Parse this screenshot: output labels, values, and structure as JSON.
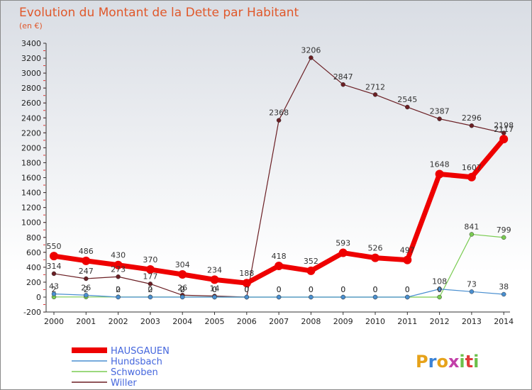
{
  "chart_data": {
    "type": "line",
    "title": "Evolution du Montant de la Dette par Habitant",
    "subtitle": "(en €)",
    "xlabel": "",
    "ylabel": "",
    "ylim": [
      -200,
      3400
    ],
    "y_ticks": [
      -200,
      0,
      200,
      400,
      600,
      800,
      1000,
      1200,
      1400,
      1600,
      1800,
      2000,
      2200,
      2400,
      2600,
      2800,
      3000,
      3200,
      3400
    ],
    "categories": [
      "2000",
      "2001",
      "2002",
      "2003",
      "2004",
      "2005",
      "2006",
      "2007",
      "2008",
      "2009",
      "2010",
      "2011",
      "2012",
      "2013",
      "2014"
    ],
    "grid": false,
    "legend_position": "bottom-left",
    "series": [
      {
        "name": "Willer",
        "color": "#6b1f24",
        "values": [
          314,
          247,
          273,
          177,
          26,
          14,
          0,
          2368,
          3206,
          2847,
          2712,
          2545,
          2387,
          2296,
          2198
        ],
        "labels": [
          "314",
          "247",
          "273",
          "177",
          "26",
          "14",
          "0",
          "2368",
          "3206",
          "2847",
          "2712",
          "2545",
          "2387",
          "2296",
          "2198"
        ]
      },
      {
        "name": "Schwoben",
        "color": "#7acc52",
        "values": [
          2,
          2,
          2,
          2,
          2,
          0,
          0,
          0,
          0,
          0,
          0,
          0,
          0,
          841,
          799
        ],
        "labels": [
          "2",
          "2",
          "2",
          "2",
          "2",
          "0",
          "0",
          "0",
          "0",
          "0",
          "0",
          "0",
          "0",
          "841",
          "799"
        ]
      },
      {
        "name": "Hundsbach",
        "color": "#4a8fd0",
        "values": [
          43,
          26,
          0,
          0,
          0,
          0,
          0,
          0,
          0,
          0,
          0,
          0,
          108,
          73,
          38
        ],
        "labels": [
          "43",
          "26",
          "0",
          "0",
          "0",
          "0",
          "0",
          "0",
          "0",
          "0",
          "0",
          "0",
          "108",
          "73",
          "38"
        ]
      },
      {
        "name": "HAUSGAUEN",
        "color": "#ee0000",
        "values": [
          550,
          486,
          430,
          370,
          304,
          234,
          188,
          418,
          352,
          593,
          526,
          497,
          1648,
          1607,
          2117
        ],
        "labels": [
          "550",
          "486",
          "430",
          "370",
          "304",
          "234",
          "188",
          "418",
          "352",
          "593",
          "526",
          "497",
          "1648",
          "1607",
          "2117"
        ]
      }
    ],
    "legend_order": [
      "HAUSGAUEN",
      "Hundsbach",
      "Schwoben",
      "Willer"
    ]
  },
  "logo": {
    "text": "Proxiti"
  }
}
